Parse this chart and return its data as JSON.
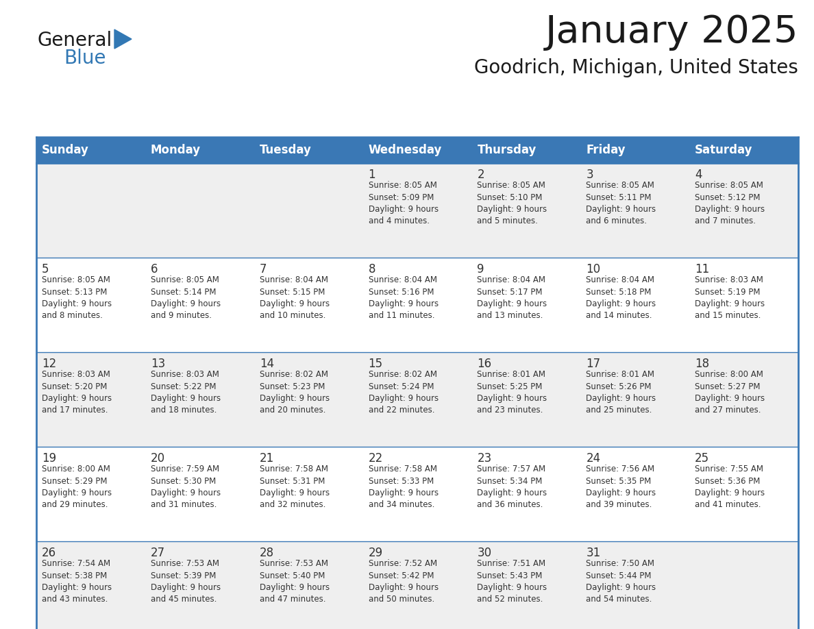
{
  "title": "January 2025",
  "subtitle": "Goodrich, Michigan, United States",
  "header_bg_color": "#3A78B5",
  "header_text_color": "#FFFFFF",
  "cell_bg_row0": "#EFEFEF",
  "cell_bg_row1": "#FFFFFF",
  "cell_bg_row2": "#EFEFEF",
  "cell_bg_row3": "#FFFFFF",
  "cell_bg_row4": "#EFEFEF",
  "cell_text_color": "#333333",
  "day_number_color": "#333333",
  "border_color": "#3A78B5",
  "days_of_week": [
    "Sunday",
    "Monday",
    "Tuesday",
    "Wednesday",
    "Thursday",
    "Friday",
    "Saturday"
  ],
  "logo_color1": "#1a1a1a",
  "logo_color2": "#3278B4",
  "calendar_data": [
    [
      {
        "day": "",
        "info": ""
      },
      {
        "day": "",
        "info": ""
      },
      {
        "day": "",
        "info": ""
      },
      {
        "day": "1",
        "info": "Sunrise: 8:05 AM\nSunset: 5:09 PM\nDaylight: 9 hours\nand 4 minutes."
      },
      {
        "day": "2",
        "info": "Sunrise: 8:05 AM\nSunset: 5:10 PM\nDaylight: 9 hours\nand 5 minutes."
      },
      {
        "day": "3",
        "info": "Sunrise: 8:05 AM\nSunset: 5:11 PM\nDaylight: 9 hours\nand 6 minutes."
      },
      {
        "day": "4",
        "info": "Sunrise: 8:05 AM\nSunset: 5:12 PM\nDaylight: 9 hours\nand 7 minutes."
      }
    ],
    [
      {
        "day": "5",
        "info": "Sunrise: 8:05 AM\nSunset: 5:13 PM\nDaylight: 9 hours\nand 8 minutes."
      },
      {
        "day": "6",
        "info": "Sunrise: 8:05 AM\nSunset: 5:14 PM\nDaylight: 9 hours\nand 9 minutes."
      },
      {
        "day": "7",
        "info": "Sunrise: 8:04 AM\nSunset: 5:15 PM\nDaylight: 9 hours\nand 10 minutes."
      },
      {
        "day": "8",
        "info": "Sunrise: 8:04 AM\nSunset: 5:16 PM\nDaylight: 9 hours\nand 11 minutes."
      },
      {
        "day": "9",
        "info": "Sunrise: 8:04 AM\nSunset: 5:17 PM\nDaylight: 9 hours\nand 13 minutes."
      },
      {
        "day": "10",
        "info": "Sunrise: 8:04 AM\nSunset: 5:18 PM\nDaylight: 9 hours\nand 14 minutes."
      },
      {
        "day": "11",
        "info": "Sunrise: 8:03 AM\nSunset: 5:19 PM\nDaylight: 9 hours\nand 15 minutes."
      }
    ],
    [
      {
        "day": "12",
        "info": "Sunrise: 8:03 AM\nSunset: 5:20 PM\nDaylight: 9 hours\nand 17 minutes."
      },
      {
        "day": "13",
        "info": "Sunrise: 8:03 AM\nSunset: 5:22 PM\nDaylight: 9 hours\nand 18 minutes."
      },
      {
        "day": "14",
        "info": "Sunrise: 8:02 AM\nSunset: 5:23 PM\nDaylight: 9 hours\nand 20 minutes."
      },
      {
        "day": "15",
        "info": "Sunrise: 8:02 AM\nSunset: 5:24 PM\nDaylight: 9 hours\nand 22 minutes."
      },
      {
        "day": "16",
        "info": "Sunrise: 8:01 AM\nSunset: 5:25 PM\nDaylight: 9 hours\nand 23 minutes."
      },
      {
        "day": "17",
        "info": "Sunrise: 8:01 AM\nSunset: 5:26 PM\nDaylight: 9 hours\nand 25 minutes."
      },
      {
        "day": "18",
        "info": "Sunrise: 8:00 AM\nSunset: 5:27 PM\nDaylight: 9 hours\nand 27 minutes."
      }
    ],
    [
      {
        "day": "19",
        "info": "Sunrise: 8:00 AM\nSunset: 5:29 PM\nDaylight: 9 hours\nand 29 minutes."
      },
      {
        "day": "20",
        "info": "Sunrise: 7:59 AM\nSunset: 5:30 PM\nDaylight: 9 hours\nand 31 minutes."
      },
      {
        "day": "21",
        "info": "Sunrise: 7:58 AM\nSunset: 5:31 PM\nDaylight: 9 hours\nand 32 minutes."
      },
      {
        "day": "22",
        "info": "Sunrise: 7:58 AM\nSunset: 5:33 PM\nDaylight: 9 hours\nand 34 minutes."
      },
      {
        "day": "23",
        "info": "Sunrise: 7:57 AM\nSunset: 5:34 PM\nDaylight: 9 hours\nand 36 minutes."
      },
      {
        "day": "24",
        "info": "Sunrise: 7:56 AM\nSunset: 5:35 PM\nDaylight: 9 hours\nand 39 minutes."
      },
      {
        "day": "25",
        "info": "Sunrise: 7:55 AM\nSunset: 5:36 PM\nDaylight: 9 hours\nand 41 minutes."
      }
    ],
    [
      {
        "day": "26",
        "info": "Sunrise: 7:54 AM\nSunset: 5:38 PM\nDaylight: 9 hours\nand 43 minutes."
      },
      {
        "day": "27",
        "info": "Sunrise: 7:53 AM\nSunset: 5:39 PM\nDaylight: 9 hours\nand 45 minutes."
      },
      {
        "day": "28",
        "info": "Sunrise: 7:53 AM\nSunset: 5:40 PM\nDaylight: 9 hours\nand 47 minutes."
      },
      {
        "day": "29",
        "info": "Sunrise: 7:52 AM\nSunset: 5:42 PM\nDaylight: 9 hours\nand 50 minutes."
      },
      {
        "day": "30",
        "info": "Sunrise: 7:51 AM\nSunset: 5:43 PM\nDaylight: 9 hours\nand 52 minutes."
      },
      {
        "day": "31",
        "info": "Sunrise: 7:50 AM\nSunset: 5:44 PM\nDaylight: 9 hours\nand 54 minutes."
      },
      {
        "day": "",
        "info": ""
      }
    ]
  ]
}
